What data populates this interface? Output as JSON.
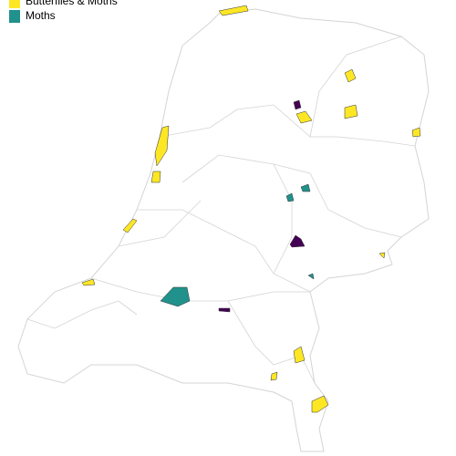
{
  "legend": [
    {
      "name": "Butterflies & Moths",
      "color": "#fde725"
    },
    {
      "name": "Moths",
      "color": "#21918c"
    }
  ],
  "extra_color": "#440154"
}
